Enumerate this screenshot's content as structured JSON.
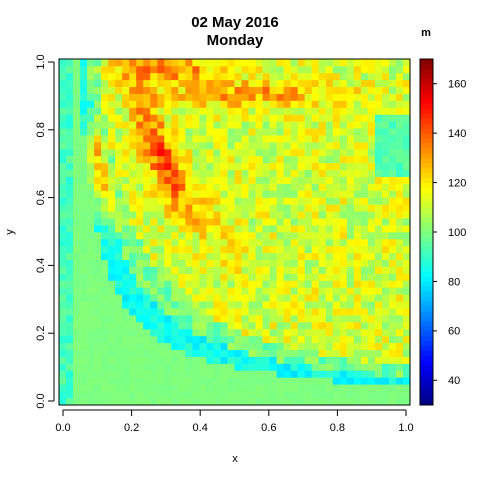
{
  "chart_data": {
    "type": "heatmap",
    "title": "02 May 2016",
    "subtitle": "Monday",
    "xlabel": "x",
    "ylabel": "y",
    "xlim": [
      0,
      1
    ],
    "ylim": [
      0,
      1
    ],
    "x_ticks": [
      "0.0",
      "0.2",
      "0.4",
      "0.6",
      "0.8",
      "1.0"
    ],
    "y_ticks": [
      "0.0",
      "0.2",
      "0.4",
      "0.6",
      "0.8",
      "1.0"
    ],
    "grid_resolution": 50,
    "background_value": 100,
    "colorbar": {
      "unit": "m",
      "range": [
        30,
        170
      ],
      "ticks": [
        "40",
        "60",
        "80",
        "100",
        "120",
        "140",
        "160"
      ],
      "colormap": [
        "#00007f",
        "#0000ff",
        "#007fff",
        "#00ffff",
        "#7fff7f",
        "#ffff00",
        "#ff7f00",
        "#ff0000",
        "#7f0000"
      ]
    },
    "features": [
      {
        "description": "low-value band along the lower-left curve",
        "approx_value": 84
      },
      {
        "description": "high-value ridge near x 0.1, y 0.65",
        "approx_value": 155
      },
      {
        "description": "high-value ridge along the upper arc",
        "approx_value": 145
      },
      {
        "description": "high-value band near y 0.97 around x 0.3",
        "approx_value": 140
      },
      {
        "description": "flat region in the lower-right",
        "approx_value": 100
      }
    ]
  }
}
